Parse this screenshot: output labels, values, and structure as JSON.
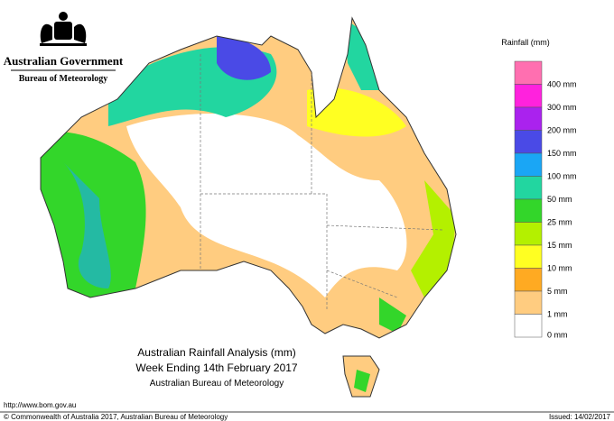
{
  "header": {
    "government": "Australian Government",
    "bureau": "Bureau of Meteorology"
  },
  "legend": {
    "title": "Rainfall (mm)",
    "top_color": "#ff6fb0",
    "items": [
      {
        "label": "400 mm",
        "color": "#ff22dd"
      },
      {
        "label": "300 mm",
        "color": "#aa22ee"
      },
      {
        "label": "200 mm",
        "color": "#4a4ae6"
      },
      {
        "label": "150 mm",
        "color": "#1aa6f5"
      },
      {
        "label": "100 mm",
        "color": "#22d6a0"
      },
      {
        "label": "50 mm",
        "color": "#33d62a"
      },
      {
        "label": "25 mm",
        "color": "#b4f000"
      },
      {
        "label": "15 mm",
        "color": "#ffff22"
      },
      {
        "label": "10 mm",
        "color": "#ffaa22"
      },
      {
        "label": "5 mm",
        "color": "#ffcc80"
      },
      {
        "label": "1 mm",
        "color": "#ffffff"
      },
      {
        "label": "0 mm",
        "color": "#ffffff"
      }
    ]
  },
  "map_title": {
    "line1": "Australian Rainfall Analysis (mm)",
    "line2": "Week Ending 14th February 2017",
    "line3": "Australian Bureau of Meteorology"
  },
  "footer": {
    "url": "http://www.bom.gov.au",
    "copyright": "© Commonwealth of Australia 2017, Australian Bureau of Meteorology",
    "issued": "Issued: 14/02/2017"
  }
}
